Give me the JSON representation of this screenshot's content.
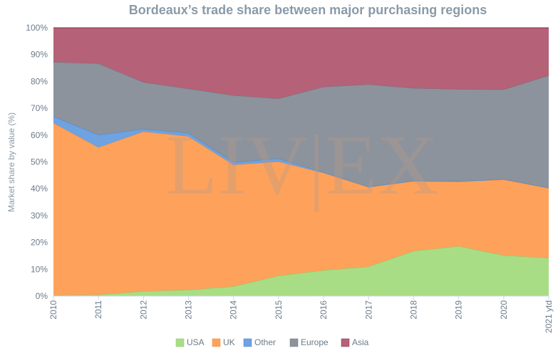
{
  "chart_data": {
    "type": "area",
    "stacked": true,
    "title": "Bordeaux’s trade share between major purchasing regions",
    "ylabel": "Market share by value (%)",
    "xlabel": "",
    "ylim": [
      0,
      100
    ],
    "y_ticks": [
      "0%",
      "10%",
      "20%",
      "30%",
      "40%",
      "50%",
      "60%",
      "70%",
      "80%",
      "90%",
      "100%"
    ],
    "categories": [
      "2010",
      "2011",
      "2012",
      "2013",
      "2014",
      "2015",
      "2016",
      "2017",
      "2018",
      "2019",
      "2020",
      "2021 ytd"
    ],
    "series": [
      {
        "name": "USA",
        "color": "#a9dd85",
        "line": "#8cc860",
        "values": [
          0.3,
          0.5,
          1.8,
          2.3,
          3.6,
          7.6,
          9.6,
          11.0,
          16.8,
          18.6,
          15.2,
          14.2
        ]
      },
      {
        "name": "UK",
        "color": "#fea25b",
        "line": "#f28a35",
        "values": [
          64.2,
          54.9,
          59.5,
          57.2,
          45.3,
          42.5,
          36.3,
          29.6,
          26.0,
          24.0,
          28.2,
          26.0
        ]
      },
      {
        "name": "Other",
        "color": "#6ea2e0",
        "line": "#4a86d0",
        "values": [
          2.5,
          4.7,
          1.0,
          1.3,
          1.0,
          1.2,
          0.2,
          0.2,
          0.2,
          0.2,
          0.2,
          0.2
        ]
      },
      {
        "name": "Europe",
        "color": "#8c939c",
        "line": "#6e7580",
        "values": [
          20.2,
          26.6,
          17.4,
          16.5,
          24.9,
          22.3,
          31.9,
          38.1,
          34.5,
          34.3,
          33.4,
          41.8
        ]
      },
      {
        "name": "Asia",
        "color": "#b56178",
        "line": "#8a2c48",
        "values": [
          12.8,
          13.3,
          20.3,
          22.7,
          25.2,
          26.4,
          22.0,
          21.1,
          22.5,
          22.9,
          23.0,
          17.8
        ]
      }
    ],
    "legend_position": "bottom-center",
    "grid": true,
    "watermark": "LIV|EX"
  }
}
